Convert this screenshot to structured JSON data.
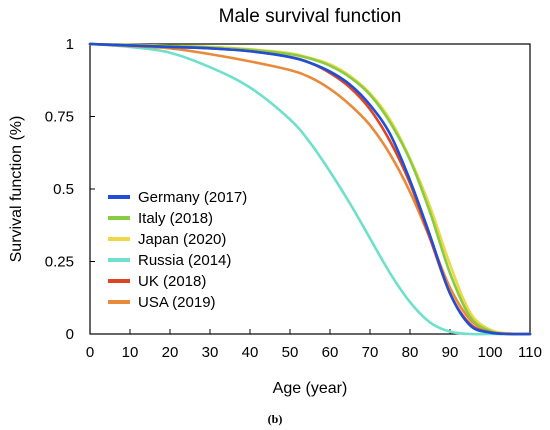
{
  "caption": "(b)",
  "chart_data": {
    "type": "line",
    "title": "Male survival function",
    "xlabel": "Age (year)",
    "ylabel": "Survival function (%)",
    "xlim": [
      0,
      110
    ],
    "ylim": [
      0,
      1
    ],
    "xticks": [
      0,
      10,
      20,
      30,
      40,
      50,
      60,
      70,
      80,
      90,
      100,
      110
    ],
    "xtick_labels": [
      "0",
      "10",
      "20",
      "30",
      "40",
      "50",
      "60",
      "70",
      "80",
      "90",
      "100",
      "110"
    ],
    "yticks": [
      0,
      0.25,
      0.5,
      0.75,
      1
    ],
    "ytick_labels": [
      "0",
      "0.25",
      "0.5",
      "0.75",
      "1"
    ],
    "grid": false,
    "legend_position": "left",
    "x": [
      0,
      10,
      20,
      30,
      40,
      50,
      55,
      60,
      65,
      70,
      75,
      80,
      85,
      90,
      95,
      100,
      105,
      110
    ],
    "series": [
      {
        "name": "Germany (2017)",
        "color": "#1f4fd6",
        "values": [
          1,
          0.995,
          0.99,
          0.985,
          0.975,
          0.955,
          0.935,
          0.905,
          0.86,
          0.79,
          0.69,
          0.53,
          0.34,
          0.14,
          0.03,
          0.005,
          0,
          0
        ]
      },
      {
        "name": "Italy (2018)",
        "color": "#88cc44",
        "values": [
          1,
          0.996,
          0.993,
          0.988,
          0.98,
          0.965,
          0.95,
          0.925,
          0.885,
          0.825,
          0.73,
          0.6,
          0.42,
          0.21,
          0.06,
          0.01,
          0,
          0
        ]
      },
      {
        "name": "Japan (2020)",
        "color": "#ecd848",
        "values": [
          1,
          0.997,
          0.994,
          0.99,
          0.982,
          0.968,
          0.952,
          0.93,
          0.89,
          0.83,
          0.74,
          0.605,
          0.44,
          0.24,
          0.075,
          0.015,
          0.002,
          0
        ]
      },
      {
        "name": "Russia (2014)",
        "color": "#6ee0cc",
        "values": [
          1,
          0.99,
          0.97,
          0.92,
          0.85,
          0.74,
          0.66,
          0.56,
          0.45,
          0.33,
          0.21,
          0.11,
          0.04,
          0.008,
          0,
          0,
          0,
          0
        ]
      },
      {
        "name": "UK (2018)",
        "color": "#dd4422",
        "values": [
          1,
          0.995,
          0.99,
          0.985,
          0.975,
          0.955,
          0.935,
          0.9,
          0.85,
          0.775,
          0.665,
          0.52,
          0.33,
          0.14,
          0.035,
          0.006,
          0,
          0
        ]
      },
      {
        "name": "USA (2019)",
        "color": "#e98a3a",
        "values": [
          1,
          0.993,
          0.985,
          0.965,
          0.94,
          0.91,
          0.885,
          0.845,
          0.79,
          0.72,
          0.62,
          0.49,
          0.33,
          0.16,
          0.05,
          0.01,
          0,
          0
        ]
      }
    ]
  }
}
